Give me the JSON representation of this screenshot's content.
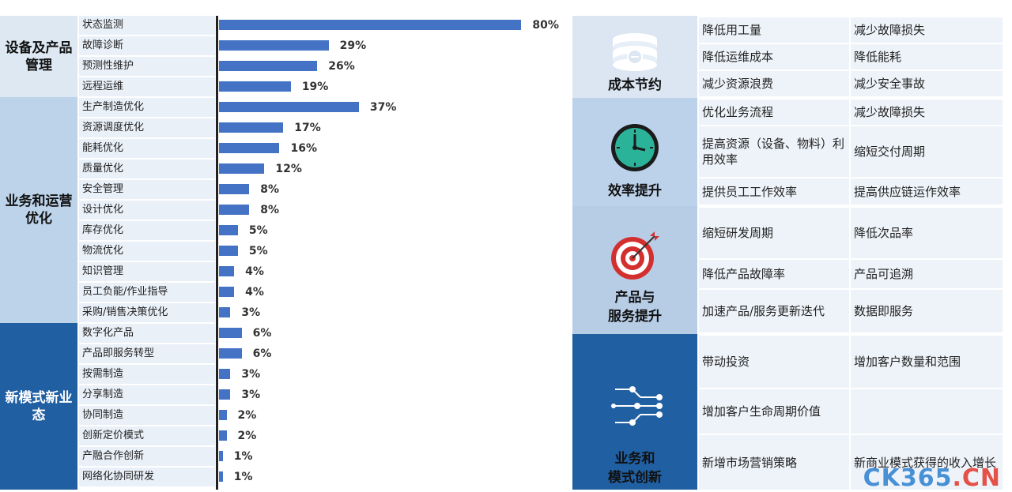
{
  "chart_data": {
    "type": "bar",
    "orientation": "horizontal",
    "groups": [
      {
        "name": "设备及产品管理",
        "items": [
          {
            "label": "状态监测",
            "value": 80
          },
          {
            "label": "故障诊断",
            "value": 29
          },
          {
            "label": "预测性维护",
            "value": 26
          },
          {
            "label": "远程运维",
            "value": 19
          }
        ]
      },
      {
        "name": "业务和运营优化",
        "items": [
          {
            "label": "生产制造优化",
            "value": 37
          },
          {
            "label": "资源调度优化",
            "value": 17
          },
          {
            "label": "能耗优化",
            "value": 16
          },
          {
            "label": "质量优化",
            "value": 12
          },
          {
            "label": "安全管理",
            "value": 8
          },
          {
            "label": "设计优化",
            "value": 8
          },
          {
            "label": "库存优化",
            "value": 5
          },
          {
            "label": "物流优化",
            "value": 5
          },
          {
            "label": "知识管理",
            "value": 4
          },
          {
            "label": "员工负能/作业指导",
            "value": 4
          },
          {
            "label": "采购/销售决策优化",
            "value": 3
          }
        ]
      },
      {
        "name": "新模式新业态",
        "items": [
          {
            "label": "数字化产品",
            "value": 6
          },
          {
            "label": "产品即服务转型",
            "value": 6
          },
          {
            "label": "按需制造",
            "value": 3
          },
          {
            "label": "分享制造",
            "value": 3
          },
          {
            "label": "协同制造",
            "value": 2
          },
          {
            "label": "创新定价模式",
            "value": 2
          },
          {
            "label": "产融合作创新",
            "value": 1
          },
          {
            "label": "网络化协同研发",
            "value": 1
          }
        ]
      }
    ],
    "value_format": "{v}%",
    "xlim": [
      0,
      100
    ],
    "bar_color": "#4472c4"
  },
  "benefits": [
    {
      "title_lines": [
        "成本节约"
      ],
      "icon": "database-coins-icon",
      "rows": [
        [
          "降低用工量",
          "减少故障损失"
        ],
        [
          "降低运维成本",
          "降低能耗"
        ],
        [
          "减少资源浪费",
          "减少安全事故"
        ]
      ]
    },
    {
      "title_lines": [
        "效率提升"
      ],
      "icon": "clock-icon",
      "rows": [
        [
          "优化业务流程",
          "减少故障损失"
        ],
        [
          "提高资源（设备、物料）利用效率",
          "缩短交付周期"
        ],
        [
          "提供员工工作效率",
          "提高供应链运作效率"
        ]
      ]
    },
    {
      "title_lines": [
        "产品与",
        "服务提升"
      ],
      "icon": "target-icon",
      "rows": [
        [
          "缩短研发周期",
          "降低次品率"
        ],
        [
          "降低产品故障率",
          "产品可追溯"
        ],
        [
          "加速产品/服务更新迭代",
          "数据即服务"
        ]
      ]
    },
    {
      "title_lines": [
        "业务和",
        "模式创新"
      ],
      "icon": "circuit-network-icon",
      "rows": [
        [
          "带动投资",
          "增加客户数量和范围"
        ],
        [
          "增加客户生命周期价值",
          ""
        ],
        [
          "新增市场营销策略",
          "新商业模式获得的收入增长"
        ]
      ]
    }
  ],
  "watermark": {
    "part1": "CK365",
    "part2": ".CN"
  },
  "colors": {
    "dark_blue": "#1f5fa2",
    "mid_blue": "#bcd3ea",
    "light_blue": "#dde8f3"
  }
}
